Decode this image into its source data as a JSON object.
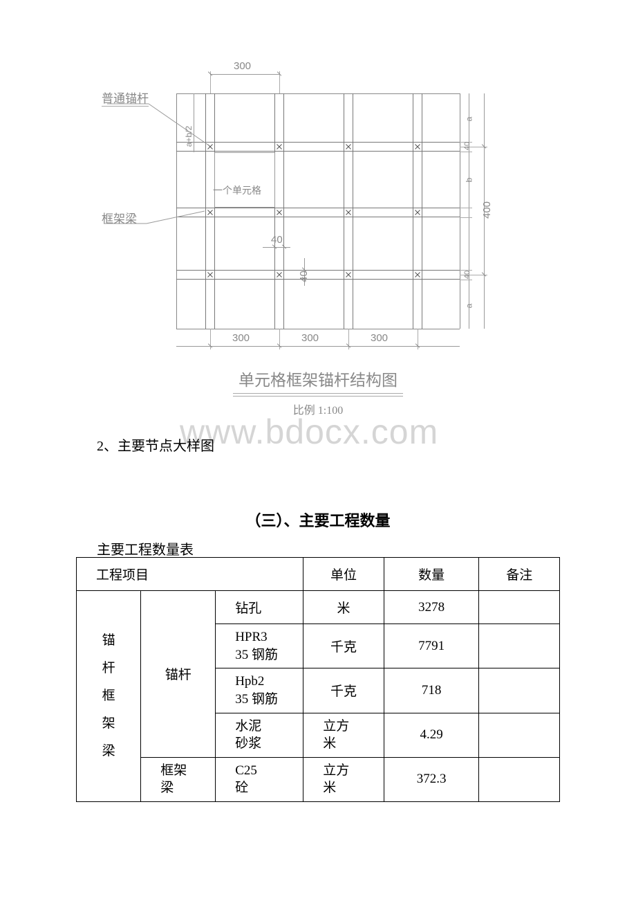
{
  "diagram": {
    "top_dim": "300",
    "bottom_dims": [
      "300",
      "300",
      "300"
    ],
    "right_dim_big": "400",
    "right_dim_small1": "40",
    "right_dim_small2": "40",
    "right_dim_a": "a",
    "right_dim_b": "b",
    "inner_dim_40_h": "40",
    "inner_dim_40_v": "40",
    "inner_dim_ab2": "a+b/2",
    "label_anchor": "普通锚杆",
    "label_frame": "框架梁",
    "label_unit": "一个单元格",
    "title": "单元格框架锚杆结构图",
    "scale": "比例 1:100"
  },
  "watermark": "www.bdocx.com",
  "body_line": "2、主要节点大样图",
  "section_title": "（三）、主要工程数量",
  "table_caption": "主要工程数量表",
  "table": {
    "headers": {
      "project": "工程项目",
      "unit": "单位",
      "qty": "数量",
      "note": "备注"
    },
    "group_label": "锚杆框架梁",
    "group_chars": [
      "锚",
      "杆",
      "框",
      "架",
      "梁"
    ],
    "sub1": "锚杆",
    "sub2": "框架梁",
    "rows": [
      {
        "item": "钻孔",
        "unit": "米",
        "qty": "3278"
      },
      {
        "item": "HPR3\n35 钢筋",
        "unit": "千克",
        "qty": "7791"
      },
      {
        "item": "Hpb2\n35 钢筋",
        "unit": "千克",
        "qty": "718"
      },
      {
        "item": "水泥\n砂浆",
        "unit": "立方\n米",
        "qty": "4.29"
      },
      {
        "item": "C25\n砼",
        "unit": "立方\n米",
        "qty": "372.3"
      }
    ]
  },
  "colors": {
    "diagram_line": "#888888",
    "text_gray": "#888888",
    "text_black": "#000000",
    "watermark": "#d5d5d5"
  }
}
